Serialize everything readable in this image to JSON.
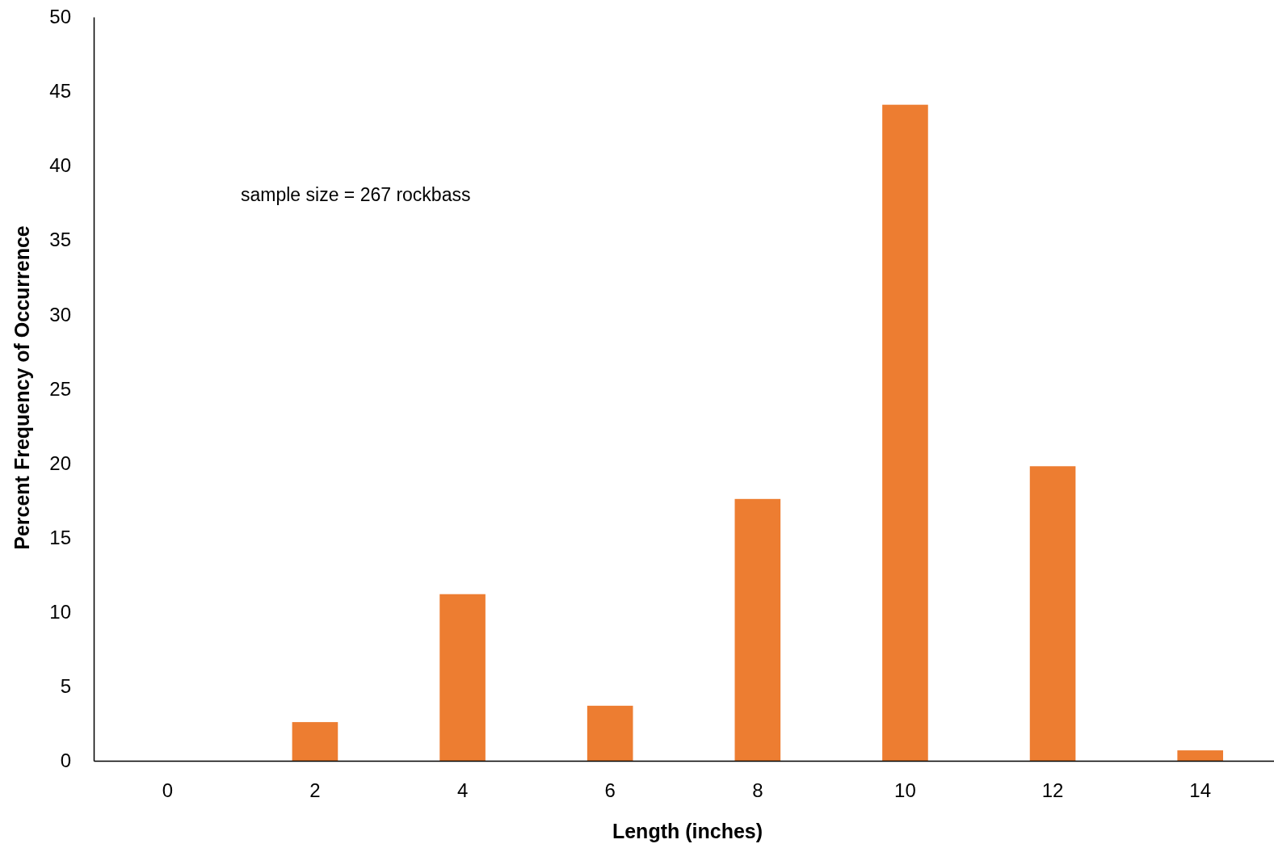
{
  "chart_data": {
    "type": "bar",
    "xlabel": "Length (inches)",
    "ylabel": "Percent Frequency of Occurrence",
    "categories": [
      "0",
      "2",
      "4",
      "6",
      "8",
      "10",
      "12",
      "14"
    ],
    "values": [
      0,
      2.6,
      11.2,
      3.7,
      17.6,
      44.1,
      19.8,
      0.7
    ],
    "color": "#ed7d31",
    "ylim": [
      0,
      50
    ],
    "yticks": [
      0,
      5,
      10,
      15,
      20,
      25,
      30,
      35,
      40,
      45,
      50
    ],
    "annotations": [
      "sample size = 267 rockbass"
    ]
  }
}
